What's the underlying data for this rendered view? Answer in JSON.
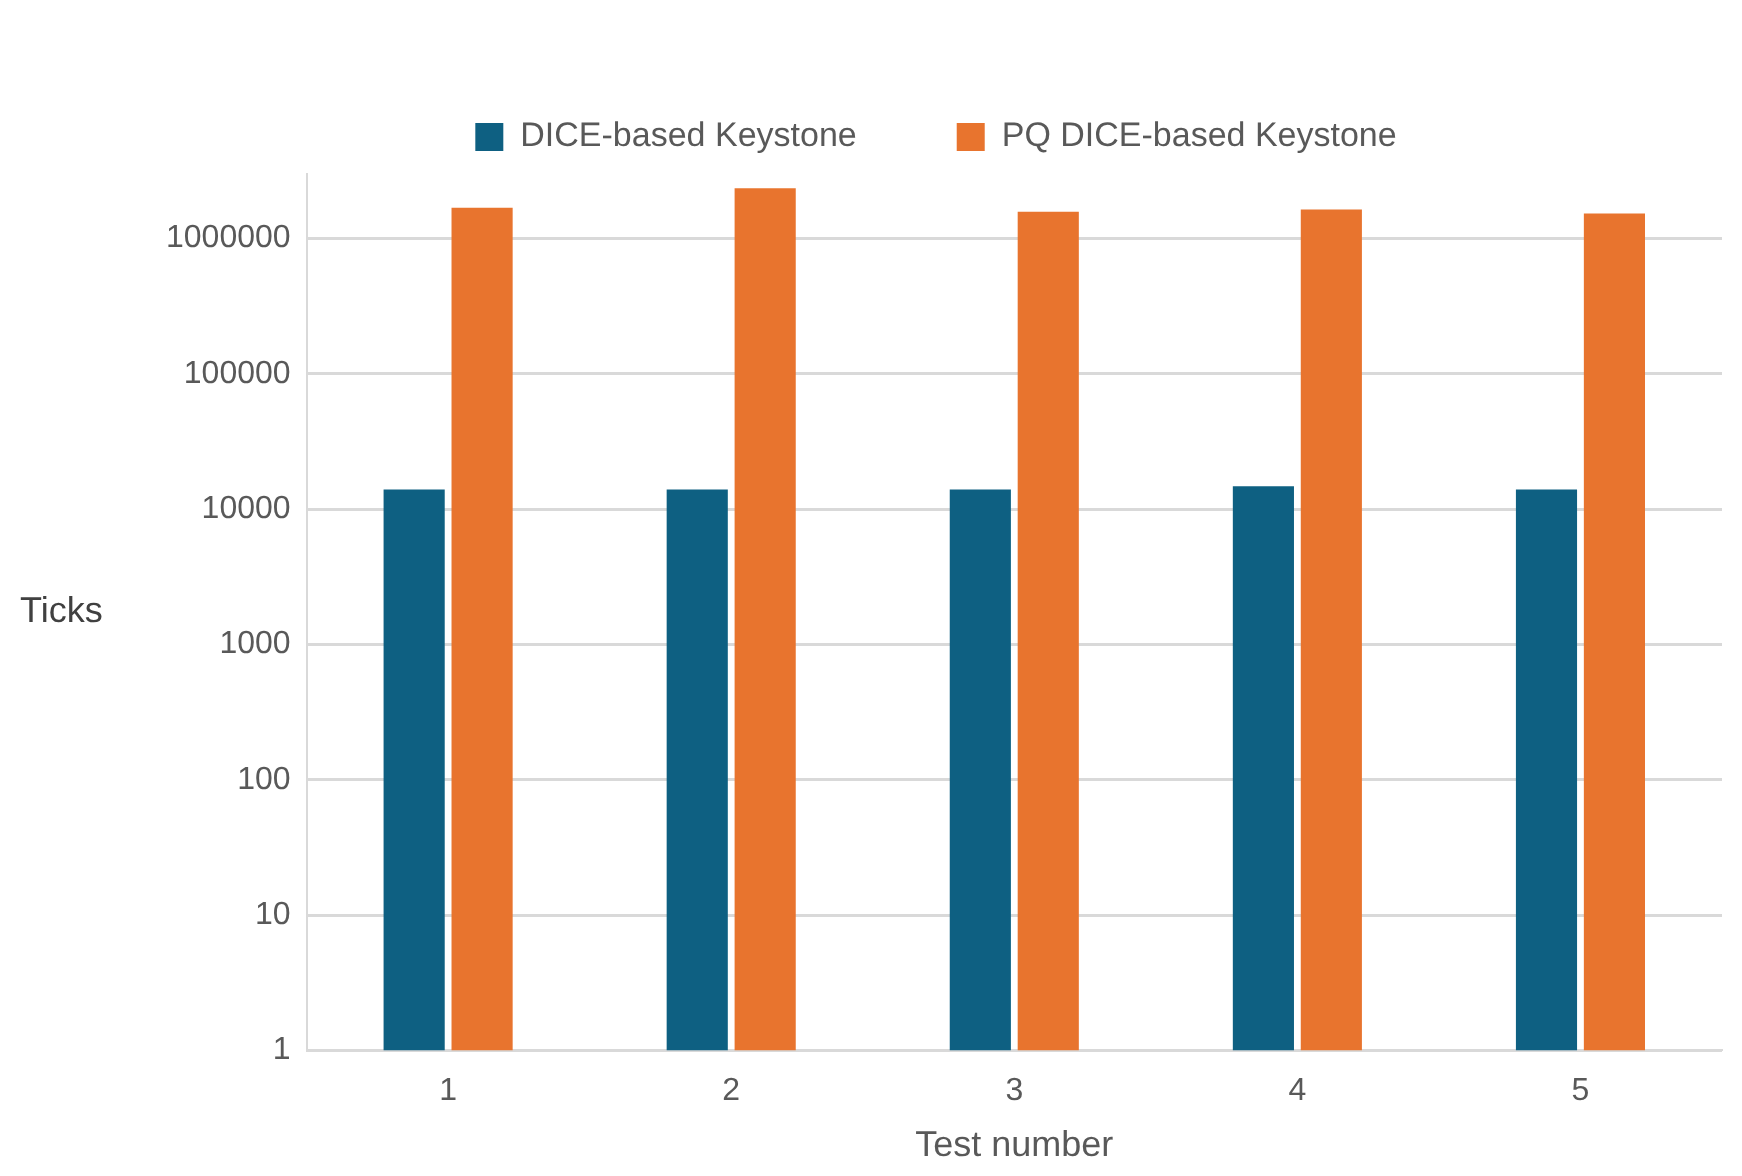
{
  "chart_data": {
    "type": "bar",
    "xlabel": "Test number",
    "ylabel": "Ticks",
    "categories": [
      "1",
      "2",
      "3",
      "4",
      "5"
    ],
    "series": [
      {
        "name": "DICE-based Keystone",
        "color": "#0e6082",
        "values": [
          14000,
          14000,
          14000,
          14800,
          14000
        ]
      },
      {
        "name": "PQ DICE-based Keystone",
        "color": "#e8742e",
        "values": [
          1690000,
          2350000,
          1580000,
          1640000,
          1530000
        ]
      }
    ],
    "log": "y",
    "ylim": [
      1,
      3000000
    ],
    "yticks": [
      1,
      10,
      100,
      1000,
      10000,
      100000,
      1000000
    ],
    "grid": "y",
    "legend": "top"
  }
}
